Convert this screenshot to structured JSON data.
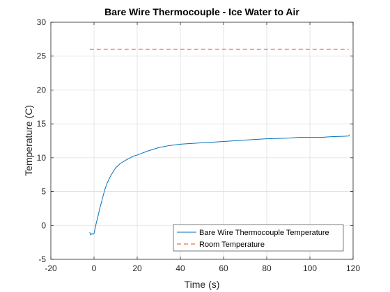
{
  "chart_data": {
    "type": "line",
    "title": "Bare Wire Thermocouple - Ice Water to Air",
    "xlabel": "Time (s)",
    "ylabel": "Temperature (C)",
    "xlim": [
      -20,
      120
    ],
    "ylim": [
      -5,
      30
    ],
    "xticks": [
      -20,
      0,
      20,
      40,
      60,
      80,
      100,
      120
    ],
    "yticks": [
      -5,
      0,
      5,
      10,
      15,
      20,
      25,
      30
    ],
    "xtick_labels": [
      "-20",
      "0",
      "20",
      "40",
      "60",
      "80",
      "100",
      "120"
    ],
    "ytick_labels": [
      "-5",
      "0",
      "5",
      "10",
      "15",
      "20",
      "25",
      "30"
    ],
    "grid": true,
    "legend_position": "bottom-right",
    "colors": {
      "thermocouple": "#0072BD",
      "room": "#D95319"
    },
    "series": [
      {
        "name": "Bare Wire Thermocouple Temperature",
        "style": "solid",
        "x": [
          -2,
          -1.5,
          -1,
          -0.5,
          0,
          1,
          2,
          3,
          4,
          5,
          6,
          8,
          10,
          12,
          15,
          18,
          20,
          25,
          30,
          35,
          40,
          45,
          50,
          55,
          60,
          65,
          70,
          75,
          80,
          85,
          90,
          95,
          100,
          105,
          110,
          115,
          118,
          118.3
        ],
        "y": [
          -1.0,
          -1.4,
          -1.2,
          -1.3,
          -1.2,
          0.3,
          1.6,
          2.9,
          4.1,
          5.3,
          6.2,
          7.5,
          8.5,
          9.1,
          9.7,
          10.2,
          10.4,
          11.0,
          11.5,
          11.8,
          12.0,
          12.1,
          12.2,
          12.3,
          12.4,
          12.5,
          12.6,
          12.7,
          12.8,
          12.85,
          12.9,
          13.0,
          13.0,
          13.0,
          13.1,
          13.15,
          13.2,
          13.4
        ]
      },
      {
        "name": "Room Temperature",
        "style": "dashed",
        "x": [
          -2,
          118
        ],
        "y": [
          26,
          26
        ]
      }
    ]
  }
}
